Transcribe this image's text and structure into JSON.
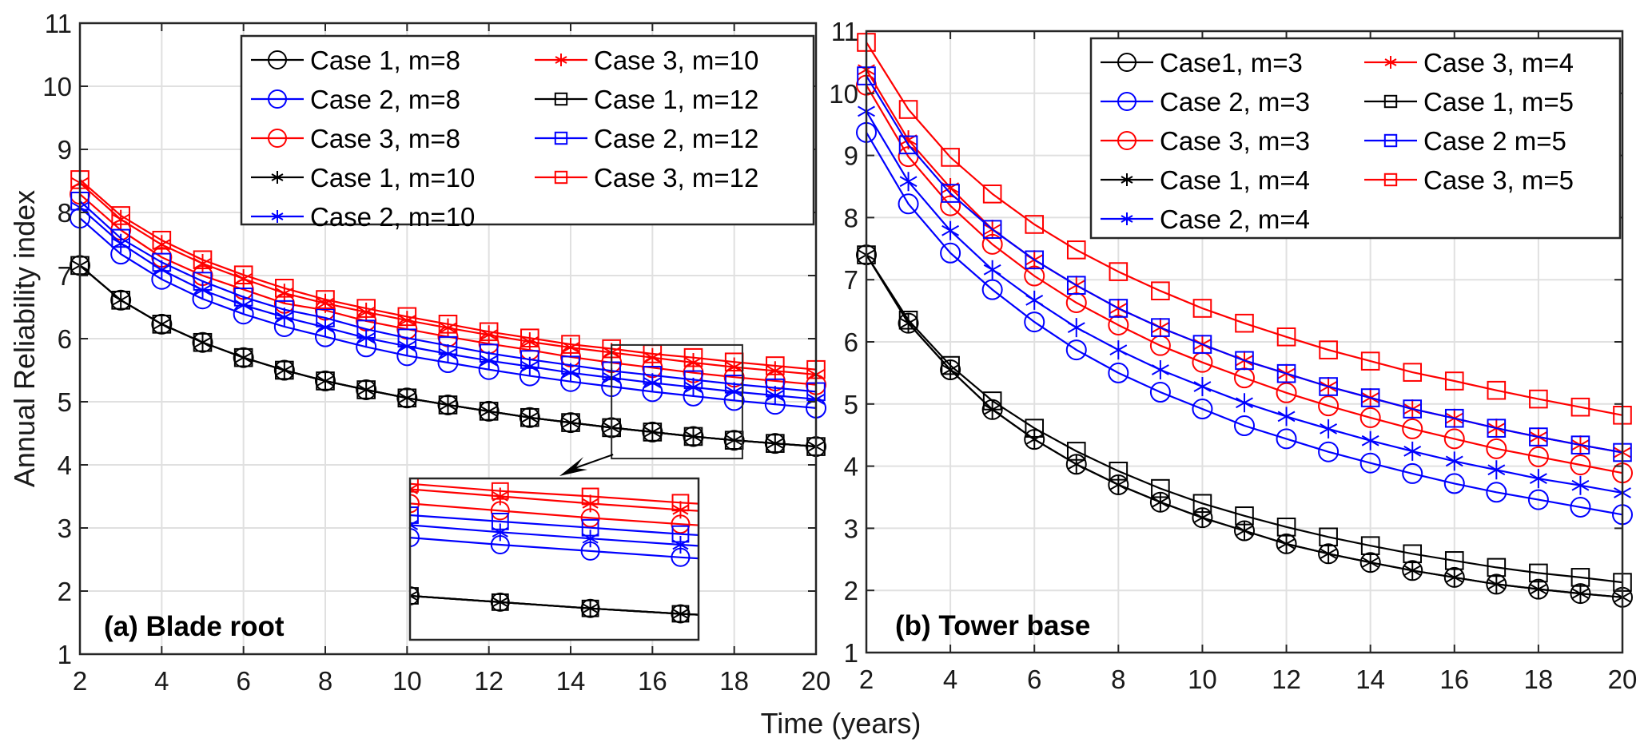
{
  "chart_data": {
    "type": "line",
    "xlabel": "Time (years)",
    "ylabel": "Annual Reliability index",
    "panels": [
      {
        "id": "a",
        "title": "(a) Blade root",
        "xlim": [
          2,
          20
        ],
        "ylim": [
          1,
          11
        ],
        "xticks": [
          2,
          4,
          6,
          8,
          10,
          12,
          14,
          16,
          18,
          20
        ],
        "yticks": [
          1,
          2,
          3,
          4,
          5,
          6,
          7,
          8,
          9,
          10,
          11
        ],
        "grid": true,
        "legend_position": "top-right",
        "x": [
          2,
          3,
          4,
          5,
          6,
          7,
          8,
          9,
          10,
          11,
          12,
          13,
          14,
          15,
          16,
          17,
          18,
          19,
          20
        ],
        "series": [
          {
            "name": "Case 1, m=8",
            "color": "#000000",
            "marker": "circle",
            "values": [
              7.16,
              6.61,
              6.23,
              5.94,
              5.7,
              5.5,
              5.33,
              5.19,
              5.06,
              4.95,
              4.85,
              4.75,
              4.67,
              4.59,
              4.52,
              4.45,
              4.39,
              4.34,
              4.29
            ]
          },
          {
            "name": "Case 2, m=8",
            "color": "#0000ff",
            "marker": "circle",
            "values": [
              7.91,
              7.34,
              6.94,
              6.63,
              6.39,
              6.19,
              6.03,
              5.87,
              5.73,
              5.62,
              5.51,
              5.41,
              5.32,
              5.24,
              5.16,
              5.09,
              5.02,
              4.96,
              4.9
            ]
          },
          {
            "name": "Case 3, m=8",
            "color": "#ff0000",
            "marker": "circle",
            "values": [
              8.29,
              7.72,
              7.29,
              7.0,
              6.78,
              6.56,
              6.45,
              6.28,
              6.15,
              6.03,
              5.92,
              5.82,
              5.71,
              5.62,
              5.54,
              5.46,
              5.39,
              5.33,
              5.27
            ]
          },
          {
            "name": "Case 1, m=10",
            "color": "#000000",
            "marker": "star",
            "values": [
              7.16,
              6.61,
              6.23,
              5.94,
              5.7,
              5.5,
              5.33,
              5.19,
              5.06,
              4.95,
              4.85,
              4.75,
              4.67,
              4.59,
              4.52,
              4.45,
              4.39,
              4.34,
              4.29
            ]
          },
          {
            "name": "Case 2, m=10",
            "color": "#0000ff",
            "marker": "star",
            "values": [
              8.08,
              7.51,
              7.09,
              6.77,
              6.53,
              6.34,
              6.18,
              6.01,
              5.88,
              5.76,
              5.65,
              5.56,
              5.46,
              5.38,
              5.3,
              5.23,
              5.16,
              5.1,
              5.04
            ]
          },
          {
            "name": "Case 3, m=10",
            "color": "#ff0000",
            "marker": "star",
            "values": [
              8.47,
              7.89,
              7.49,
              7.19,
              6.95,
              6.72,
              6.56,
              6.42,
              6.29,
              6.17,
              6.06,
              5.95,
              5.86,
              5.78,
              5.7,
              5.62,
              5.55,
              5.49,
              5.43
            ]
          },
          {
            "name": "Case 1, m=12",
            "color": "#000000",
            "marker": "square",
            "values": [
              7.16,
              6.61,
              6.23,
              5.94,
              5.7,
              5.5,
              5.33,
              5.19,
              5.06,
              4.95,
              4.85,
              4.75,
              4.67,
              4.59,
              4.52,
              4.45,
              4.39,
              4.34,
              4.29
            ]
          },
          {
            "name": "Case 2, m=12",
            "color": "#0000ff",
            "marker": "square",
            "values": [
              8.18,
              7.59,
              7.21,
              6.91,
              6.66,
              6.46,
              6.33,
              6.15,
              6.01,
              5.89,
              5.77,
              5.67,
              5.58,
              5.49,
              5.42,
              5.35,
              5.28,
              5.22,
              5.16
            ]
          },
          {
            "name": "Case 3, m=12",
            "color": "#ff0000",
            "marker": "square",
            "values": [
              8.52,
              7.95,
              7.56,
              7.25,
              7.01,
              6.8,
              6.62,
              6.48,
              6.35,
              6.23,
              6.11,
              6.01,
              5.91,
              5.84,
              5.76,
              5.7,
              5.63,
              5.57,
              5.51
            ]
          }
        ],
        "inset": {
          "zoom_x_range": [
            15,
            18.2
          ],
          "zoom_y_range": [
            4.1,
            5.9
          ],
          "annotation": "zoomed inset with arrow"
        }
      },
      {
        "id": "b",
        "title": "(b) Tower base",
        "xlim": [
          2,
          20
        ],
        "ylim": [
          1,
          11
        ],
        "xticks": [
          2,
          4,
          6,
          8,
          10,
          12,
          14,
          16,
          18,
          20
        ],
        "yticks": [
          1,
          2,
          3,
          4,
          5,
          6,
          7,
          8,
          9,
          10,
          11
        ],
        "grid": true,
        "legend_position": "top-right",
        "x": [
          2,
          3,
          4,
          5,
          6,
          7,
          8,
          9,
          10,
          11,
          12,
          13,
          14,
          15,
          16,
          17,
          18,
          19,
          20
        ],
        "series": [
          {
            "name": "Case1, m=3",
            "color": "#000000",
            "marker": "circle",
            "values": [
              7.4,
              6.3,
              5.55,
              4.91,
              4.43,
              4.03,
              3.7,
              3.42,
              3.17,
              2.96,
              2.75,
              2.59,
              2.45,
              2.32,
              2.21,
              2.1,
              2.02,
              1.95,
              1.89
            ]
          },
          {
            "name": "Case 2, m=3",
            "color": "#0000ff",
            "marker": "circle",
            "values": [
              9.37,
              8.22,
              7.43,
              6.84,
              6.32,
              5.87,
              5.5,
              5.19,
              4.92,
              4.65,
              4.44,
              4.23,
              4.05,
              3.88,
              3.72,
              3.58,
              3.46,
              3.34,
              3.22
            ]
          },
          {
            "name": "Case 3, m=3",
            "color": "#ff0000",
            "marker": "circle",
            "values": [
              10.13,
              8.98,
              8.19,
              7.57,
              7.06,
              6.63,
              6.27,
              5.94,
              5.67,
              5.42,
              5.18,
              4.97,
              4.78,
              4.6,
              4.44,
              4.28,
              4.15,
              4.02,
              3.89
            ]
          },
          {
            "name": "Case 1, m=4",
            "color": "#000000",
            "marker": "star",
            "values": [
              7.4,
              6.3,
              5.55,
              4.91,
              4.43,
              4.03,
              3.7,
              3.42,
              3.17,
              2.96,
              2.75,
              2.59,
              2.45,
              2.32,
              2.21,
              2.1,
              2.02,
              1.95,
              1.89
            ]
          },
          {
            "name": "Case 2, m=4",
            "color": "#0000ff",
            "marker": "star",
            "values": [
              9.71,
              8.58,
              7.79,
              7.16,
              6.67,
              6.23,
              5.87,
              5.55,
              5.28,
              5.02,
              4.8,
              4.6,
              4.41,
              4.24,
              4.08,
              3.94,
              3.8,
              3.69,
              3.57
            ]
          },
          {
            "name": "Case 3, m=4",
            "color": "#ff0000",
            "marker": "star",
            "values": [
              10.38,
              9.25,
              8.48,
              7.81,
              7.32,
              6.91,
              6.54,
              6.23,
              5.96,
              5.7,
              5.49,
              5.28,
              5.1,
              4.92,
              4.77,
              4.61,
              4.47,
              4.34,
              4.22
            ]
          },
          {
            "name": "Case 1, m=5",
            "color": "#000000",
            "marker": "square",
            "values": [
              7.4,
              6.35,
              5.62,
              5.05,
              4.61,
              4.24,
              3.92,
              3.64,
              3.4,
              3.2,
              3.02,
              2.86,
              2.72,
              2.59,
              2.48,
              2.37,
              2.28,
              2.21,
              2.13
            ]
          },
          {
            "name": "Case 2 m=5",
            "color": "#0000ff",
            "marker": "square",
            "values": [
              10.28,
              9.17,
              8.39,
              7.81,
              7.32,
              6.91,
              6.54,
              6.23,
              5.96,
              5.7,
              5.49,
              5.28,
              5.1,
              4.92,
              4.77,
              4.61,
              4.47,
              4.34,
              4.22
            ]
          },
          {
            "name": "Case 3, m=5",
            "color": "#ff0000",
            "marker": "square",
            "values": [
              10.82,
              9.74,
              8.97,
              8.38,
              7.89,
              7.48,
              7.13,
              6.82,
              6.54,
              6.3,
              6.08,
              5.87,
              5.69,
              5.51,
              5.37,
              5.22,
              5.08,
              4.95,
              4.82
            ]
          }
        ]
      }
    ]
  }
}
